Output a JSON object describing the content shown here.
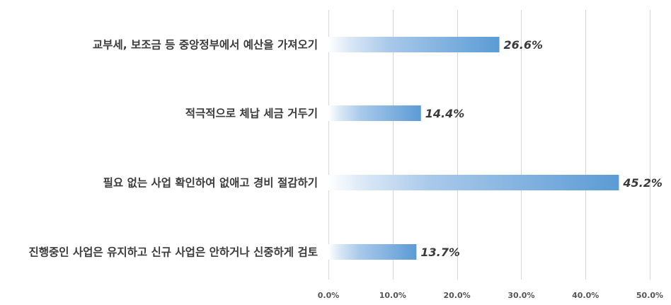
{
  "chart_data": {
    "type": "bar",
    "orientation": "horizontal",
    "categories": [
      "교부세, 보조금 등 중앙정부에서 예산을 가져오기",
      "적극적으로 체납 세금 거두기",
      "필요 없는 사업 확인하여 없애고 경비 절감하기",
      "진행중인 사업은 유지하고 신규 사업은 안하거나 신중하게 검토"
    ],
    "values": [
      26.6,
      14.4,
      45.2,
      13.7
    ],
    "value_labels": [
      "26.6%",
      "14.4%",
      "45.2%",
      "13.7%"
    ],
    "xlim": [
      0,
      50
    ],
    "xticks": [
      0,
      10,
      20,
      30,
      40,
      50
    ],
    "xtick_labels": [
      "0.0%",
      "10.0%",
      "20.0%",
      "30.0%",
      "40.0%",
      "50.0%"
    ],
    "grid": true,
    "legend": "none",
    "title": "",
    "xlabel": "",
    "ylabel": "",
    "colors": {
      "bar_start": "#ffffff",
      "bar_end": "#5b9bd5",
      "grid": "#d6d6d6",
      "text": "#3b3b3b"
    }
  }
}
